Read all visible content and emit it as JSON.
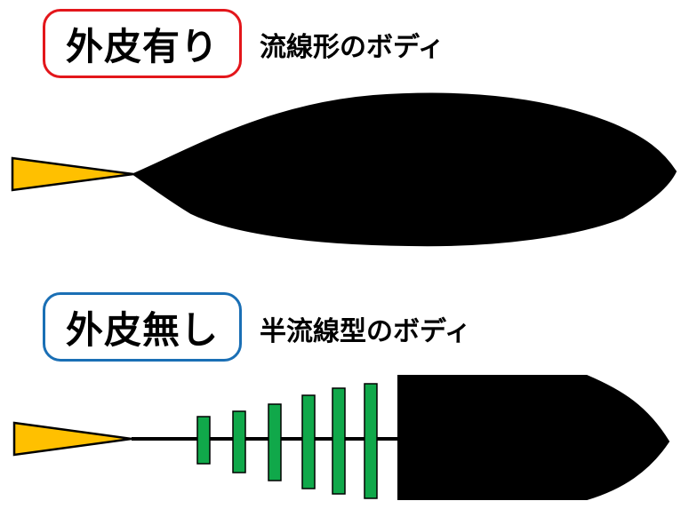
{
  "top_section": {
    "label": "外皮有り",
    "caption": "流線形のボディ"
  },
  "bottom_section": {
    "label": "外皮無し",
    "caption": "半流線型のボディ"
  },
  "colors": {
    "top_label_border": "#e3161b",
    "bottom_label_border": "#1a6fb5",
    "tail_fill": "#ffc000",
    "body_fill": "#000000",
    "rib_fill": "#10a84a"
  },
  "ribs": {
    "count": 6
  }
}
